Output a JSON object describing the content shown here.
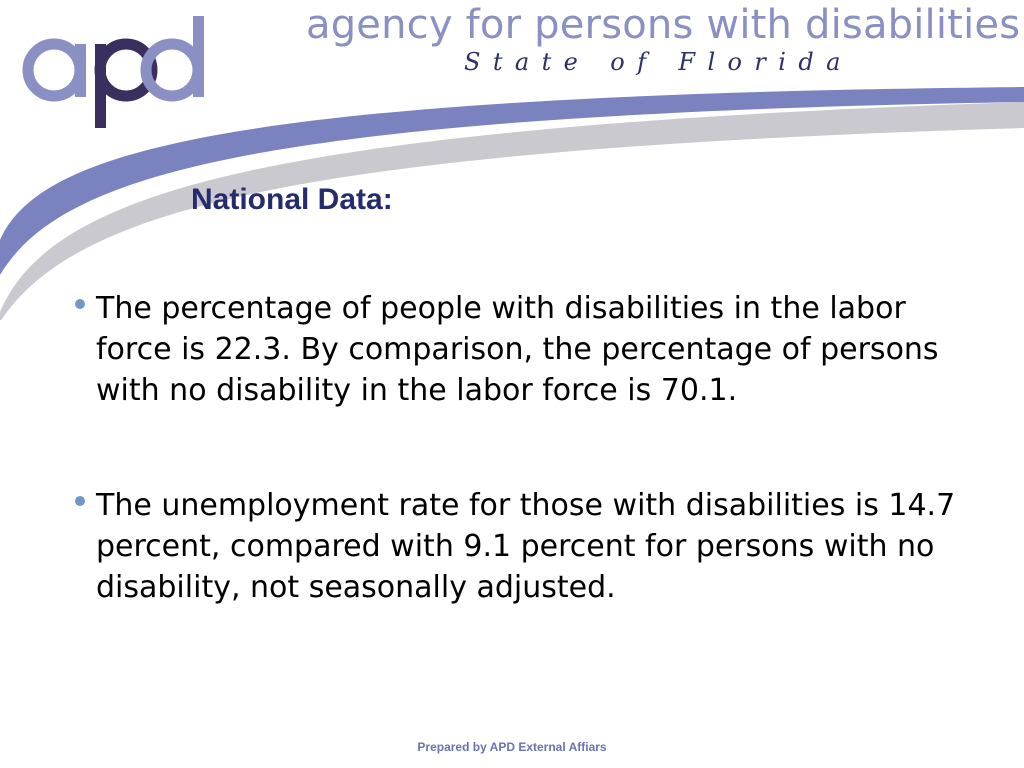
{
  "header": {
    "logo_text": "apd",
    "agency_name": "agency for persons with disabilities",
    "state_line": "State of Florida"
  },
  "slide": {
    "title": "National Data:",
    "bullets": [
      {
        "text": "The percentage of people with disabilities in the labor force is 22.3. By comparison, the percentage of persons with no disability in the labor force is 70.1."
      },
      {
        "text": "The unemployment rate for those with disabilities is 14.7 percent,  compared with 9.1 percent for persons with no disability, not seasonally adjusted."
      }
    ]
  },
  "footer": {
    "text": "Prepared by APD External Affiars"
  },
  "colors": {
    "swoosh_blue": "#7a82c0",
    "swoosh_gray": "#c9c9cf",
    "title": "#262b6f",
    "bullet": "#6f97c8",
    "logo_light": "#8a90c4",
    "logo_dark": "#3a2f5e"
  }
}
